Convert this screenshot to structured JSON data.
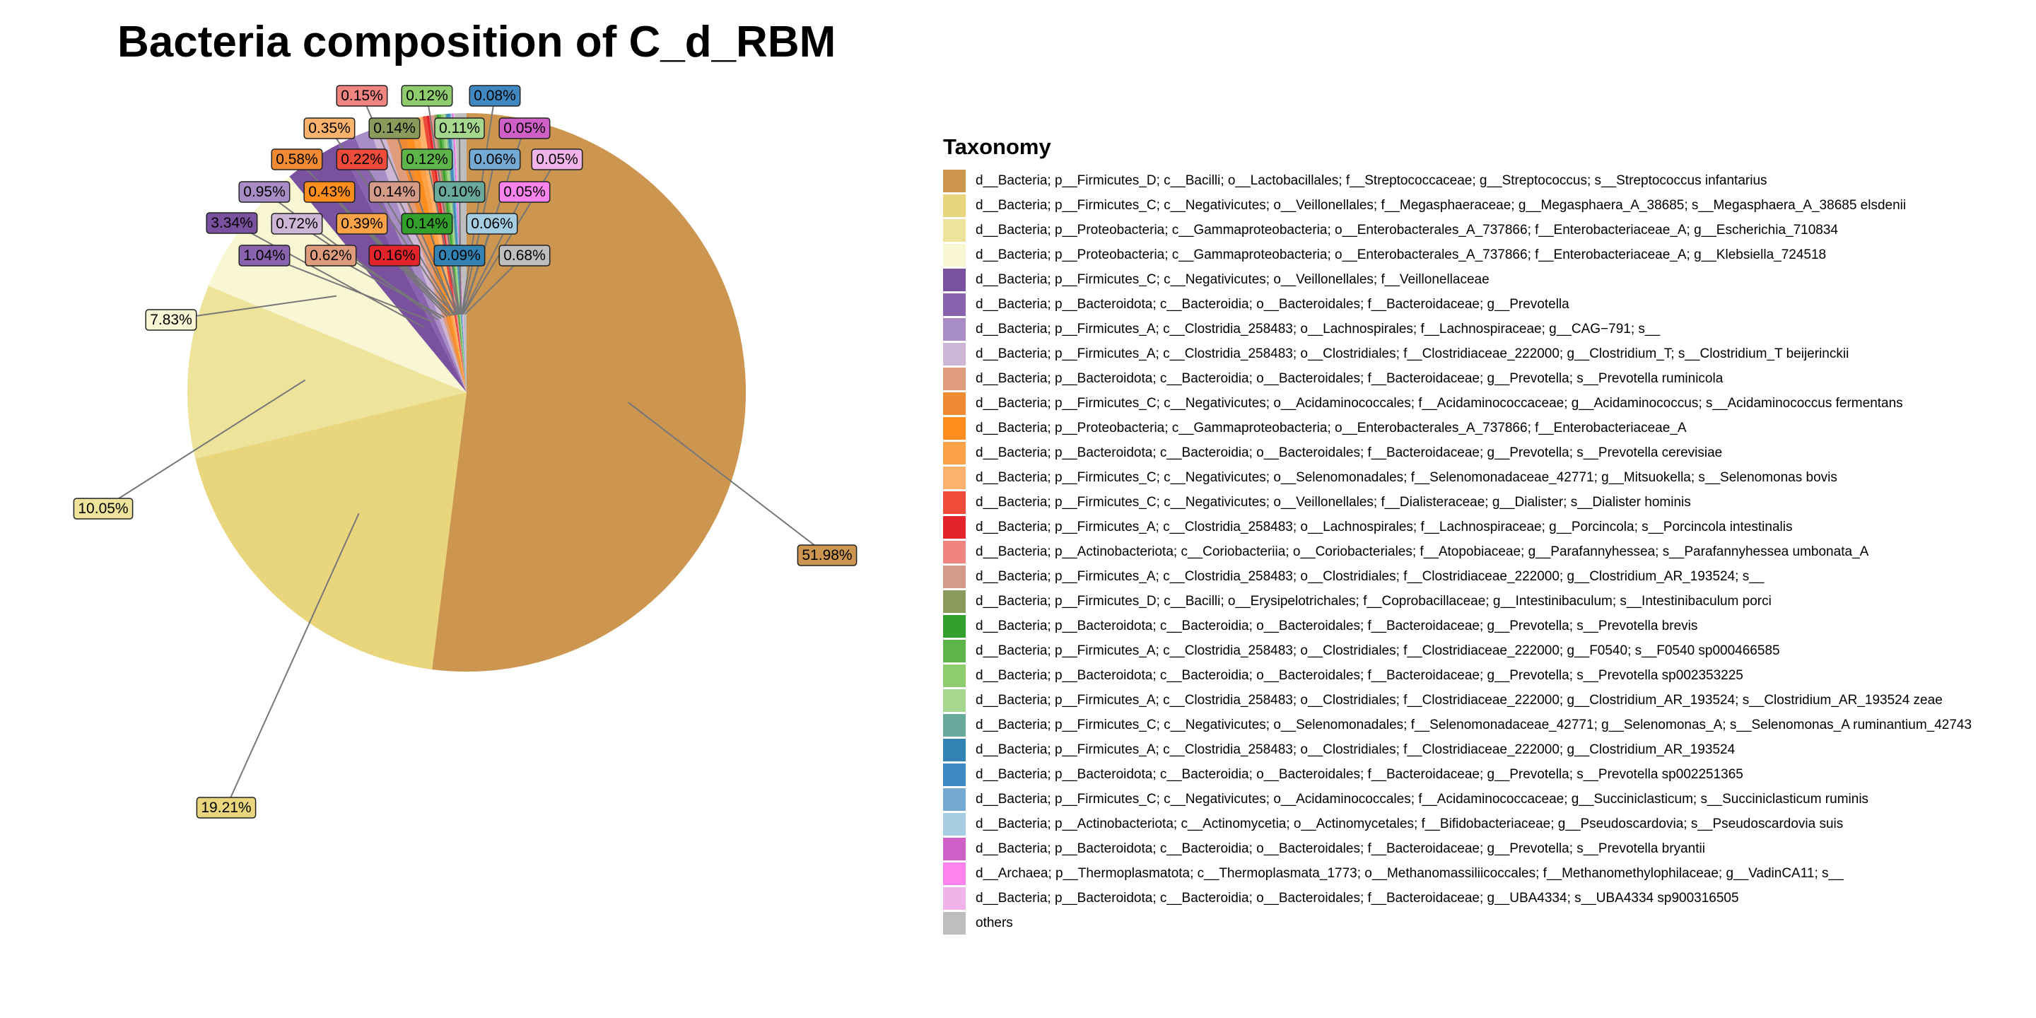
{
  "chart_data": {
    "type": "pie",
    "title": "Bacteria composition of C_d_RBM",
    "legend_title": "Taxonomy",
    "legend_position": "right",
    "slices": [
      {
        "name": "d__Bacteria; p__Firmicutes_D; c__Bacilli; o__Lactobacillales; f__Streptococcaceae; g__Streptococcus; s__Streptococcus infantarius",
        "value": 51.98,
        "label": "51.98%",
        "color": "#CC9550"
      },
      {
        "name": "d__Bacteria; p__Firmicutes_C; c__Negativicutes; o__Veillonellales; f__Megasphaeraceae; g__Megasphaera_A_38685; s__Megasphaera_A_38685 elsdenii",
        "value": 19.21,
        "label": "19.21%",
        "color": "#E8D57C"
      },
      {
        "name": "d__Bacteria; p__Proteobacteria; c__Gammaproteobacteria; o__Enterobacterales_A_737866; f__Enterobacteriaceae_A; g__Escherichia_710834",
        "value": 10.05,
        "label": "10.05%",
        "color": "#EDE39B"
      },
      {
        "name": "d__Bacteria; p__Proteobacteria; c__Gammaproteobacteria; o__Enterobacterales_A_737866; f__Enterobacteriaceae_A; g__Klebsiella_724518",
        "value": 7.83,
        "label": "7.83%",
        "color": "#F8F6D3"
      },
      {
        "name": "d__Bacteria; p__Firmicutes_C; c__Negativicutes; o__Veillonellales; f__Veillonellaceae",
        "value": 3.34,
        "label": "3.34%",
        "color": "#7A519E"
      },
      {
        "name": "d__Bacteria; p__Bacteroidota; c__Bacteroidia; o__Bacteroidales; f__Bacteroidaceae; g__Prevotella",
        "value": 1.04,
        "label": "1.04%",
        "color": "#8963AD"
      },
      {
        "name": "d__Bacteria; p__Firmicutes_A; c__Clostridia_258483; o__Lachnospirales; f__Lachnospiraceae; g__CAG−791; s__",
        "value": 0.95,
        "label": "0.95%",
        "color": "#A88CC6"
      },
      {
        "name": "d__Bacteria; p__Firmicutes_A; c__Clostridia_258483; o__Clostridiales; f__Clostridiaceae_222000; g__Clostridium_T; s__Clostridium_T beijerinckii",
        "value": 0.72,
        "label": "0.72%",
        "color": "#CDB6D6"
      },
      {
        "name": "d__Bacteria; p__Bacteroidota; c__Bacteroidia; o__Bacteroidales; f__Bacteroidaceae; g__Prevotella; s__Prevotella ruminicola",
        "value": 0.62,
        "label": "0.62%",
        "color": "#DF9C7D"
      },
      {
        "name": "d__Bacteria; p__Firmicutes_C; c__Negativicutes; o__Acidaminococcales; f__Acidaminococcaceae; g__Acidaminococcus; s__Acidaminococcus fermentans",
        "value": 0.58,
        "label": "0.58%",
        "color": "#F08A33"
      },
      {
        "name": "d__Bacteria; p__Proteobacteria; c__Gammaproteobacteria; o__Enterobacterales_A_737866; f__Enterobacteriaceae_A",
        "value": 0.43,
        "label": "0.43%",
        "color": "#FD8D1C"
      },
      {
        "name": "d__Bacteria; p__Bacteroidota; c__Bacteroidia; o__Bacteroidales; f__Bacteroidaceae; g__Prevotella; s__Prevotella cerevisiae",
        "value": 0.39,
        "label": "0.39%",
        "color": "#FBA146"
      },
      {
        "name": "d__Bacteria; p__Firmicutes_C; c__Negativicutes; o__Selenomonadales; f__Selenomonadaceae_42771; g__Mitsuokella; s__Selenomonas bovis",
        "value": 0.35,
        "label": "0.35%",
        "color": "#FBB26C"
      },
      {
        "name": "d__Bacteria; p__Firmicutes_C; c__Negativicutes; o__Veillonellales; f__Dialisteraceae; g__Dialister; s__Dialister hominis",
        "value": 0.22,
        "label": "0.22%",
        "color": "#EE4B3A"
      },
      {
        "name": "d__Bacteria; p__Firmicutes_A; c__Clostridia_258483; o__Lachnospirales; f__Lachnospiraceae; g__Porcincola; s__Porcincola intestinalis",
        "value": 0.16,
        "label": "0.16%",
        "color": "#E3242B"
      },
      {
        "name": "d__Bacteria; p__Actinobacteriota; c__Coriobacteriia; o__Coriobacteriales; f__Atopobiaceae; g__Parafannyhessea; s__Parafannyhessea umbonata_A",
        "value": 0.15,
        "label": "0.15%",
        "color": "#F08481"
      },
      {
        "name": "d__Bacteria; p__Firmicutes_A; c__Clostridia_258483; o__Clostridiales; f__Clostridiaceae_222000; g__Clostridium_AR_193524; s__",
        "value": 0.14,
        "label": "0.14%",
        "color": "#D59B89"
      },
      {
        "name": "d__Bacteria; p__Firmicutes_D; c__Bacilli; o__Erysipelotrichales; f__Coprobacillaceae; g__Intestinibaculum; s__Intestinibaculum porci",
        "value": 0.14,
        "label": "0.14%",
        "color": "#8A9A5B"
      },
      {
        "name": "d__Bacteria; p__Bacteroidota; c__Bacteroidia; o__Bacteroidales; f__Bacteroidaceae; g__Prevotella; s__Prevotella brevis",
        "value": 0.14,
        "label": "0.14%",
        "color": "#33A02C"
      },
      {
        "name": "d__Bacteria; p__Firmicutes_A; c__Clostridia_258483; o__Clostridiales; f__Clostridiaceae_222000; g__F0540; s__F0540 sp000466585",
        "value": 0.12,
        "label": "0.12%",
        "color": "#5DB54A"
      },
      {
        "name": "d__Bacteria; p__Bacteroidota; c__Bacteroidia; o__Bacteroidales; f__Bacteroidaceae; g__Prevotella; s__Prevotella sp002353225",
        "value": 0.12,
        "label": "0.12%",
        "color": "#8FCC6E"
      },
      {
        "name": "d__Bacteria; p__Firmicutes_A; c__Clostridia_258483; o__Clostridiales; f__Clostridiaceae_222000; g__Clostridium_AR_193524; s__Clostridium_AR_193524 zeae",
        "value": 0.11,
        "label": "0.11%",
        "color": "#A6D78F"
      },
      {
        "name": "d__Bacteria; p__Firmicutes_C; c__Negativicutes; o__Selenomonadales; f__Selenomonadaceae_42771; g__Selenomonas_A; s__Selenomonas_A ruminantium_42743",
        "value": 0.1,
        "label": "0.10%",
        "color": "#69A99B"
      },
      {
        "name": "d__Bacteria; p__Firmicutes_A; c__Clostridia_258483; o__Clostridiales; f__Clostridiaceae_222000; g__Clostridium_AR_193524",
        "value": 0.09,
        "label": "0.09%",
        "color": "#3382B4"
      },
      {
        "name": "d__Bacteria; p__Bacteroidota; c__Bacteroidia; o__Bacteroidales; f__Bacteroidaceae; g__Prevotella; s__Prevotella sp002251365",
        "value": 0.08,
        "label": "0.08%",
        "color": "#3F88C1"
      },
      {
        "name": "d__Bacteria; p__Firmicutes_C; c__Negativicutes; o__Acidaminococcales; f__Acidaminococcaceae; g__Succiniclasticum; s__Succiniclasticum ruminis",
        "value": 0.06,
        "label": "0.06%",
        "color": "#74A9D3"
      },
      {
        "name": "d__Bacteria; p__Actinobacteriota; c__Actinomycetia; o__Actinomycetales; f__Bifidobacteriaceae; g__Pseudoscardovia; s__Pseudoscardovia suis",
        "value": 0.06,
        "label": "0.06%",
        "color": "#A6CEE3"
      },
      {
        "name": "d__Bacteria; p__Bacteroidota; c__Bacteroidia; o__Bacteroidales; f__Bacteroidaceae; g__Prevotella; s__Prevotella bryantii",
        "value": 0.05,
        "label": "0.05%",
        "color": "#CD5FC6"
      },
      {
        "name": "d__Archaea; p__Thermoplasmatota; c__Thermoplasmata_1773; o__Methanomassiliicoccales; f__Methanomethylophilaceae; g__VadinCA11; s__",
        "value": 0.05,
        "label": "0.05%",
        "color": "#FC84EC"
      },
      {
        "name": "d__Bacteria; p__Bacteroidota; c__Bacteroidia; o__Bacteroidales; f__Bacteroidaceae; g__UBA4334; s__UBA4334 sp900316505",
        "value": 0.05,
        "label": "0.05%",
        "color": "#F0B4EA"
      },
      {
        "name": "others",
        "value": 0.68,
        "label": "0.68%",
        "color": "#BEBEBE"
      }
    ]
  }
}
